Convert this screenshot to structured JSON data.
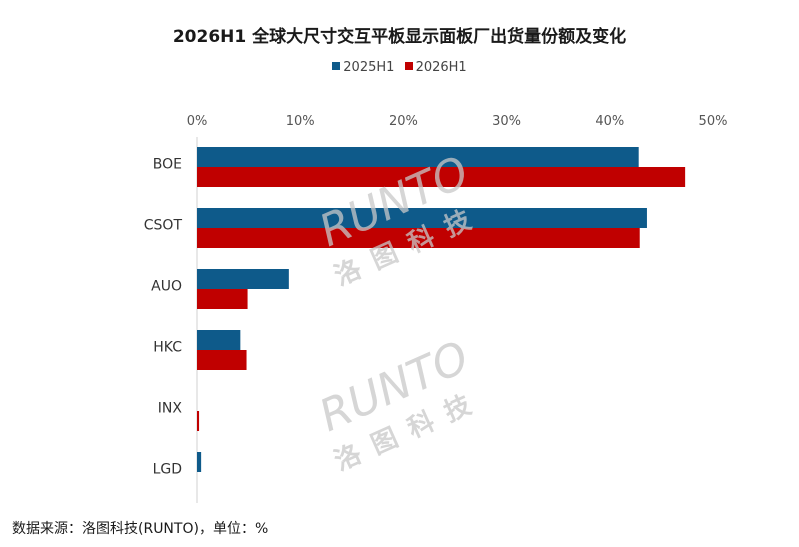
{
  "chart_data": {
    "type": "bar",
    "orientation": "horizontal",
    "title": "2026H1 全球大尺寸交互平板显示面板厂出货量份额及变化",
    "categories": [
      "BOE",
      "CSOT",
      "AUO",
      "HKC",
      "INX",
      "LGD"
    ],
    "series": [
      {
        "name": "2025H1",
        "color": "#0e5a8a",
        "values": [
          42.8,
          43.6,
          8.9,
          4.2,
          0.0,
          0.4
        ]
      },
      {
        "name": "2026H1",
        "color": "#c00000",
        "values": [
          47.3,
          42.9,
          4.9,
          4.8,
          0.2,
          0.0
        ]
      }
    ],
    "xlim": [
      0,
      50
    ],
    "x_ticks": [
      "0%",
      "10%",
      "20%",
      "30%",
      "40%",
      "50%"
    ],
    "x_tick_values": [
      0,
      10,
      20,
      30,
      40,
      50
    ],
    "x_axis_position": "top",
    "grid": false,
    "legend_position": "top-center"
  },
  "watermark": {
    "brand": "RUNTO",
    "chinese": "洛图科技",
    "color": "#c8c8c8"
  },
  "source_note": "数据来源：洛图科技(RUNTO)，单位：%"
}
